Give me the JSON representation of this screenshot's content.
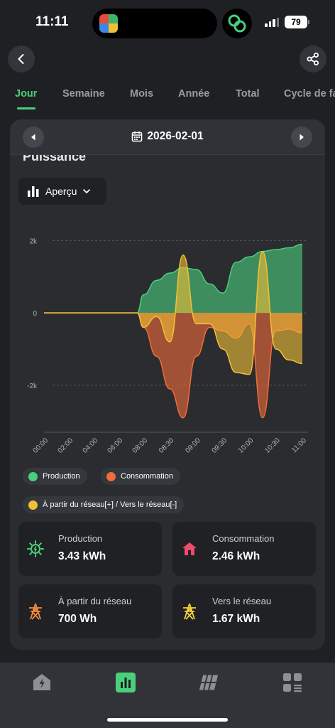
{
  "status_bar": {
    "time": "11:11",
    "battery": "79"
  },
  "tabs": [
    {
      "label": "Jour",
      "active": true
    },
    {
      "label": "Semaine",
      "active": false
    },
    {
      "label": "Mois",
      "active": false
    },
    {
      "label": "Année",
      "active": false
    },
    {
      "label": "Total",
      "active": false
    },
    {
      "label": "Cycle de facturation",
      "active": false
    }
  ],
  "date_bar": {
    "date": "2026-02-01"
  },
  "section": {
    "title": "Puissance"
  },
  "view_select": {
    "selected": "Aperçu"
  },
  "chart_data": {
    "type": "area",
    "x": [
      "00:00",
      "00:30",
      "01:00",
      "01:30",
      "02:00",
      "02:30",
      "03:00",
      "03:30",
      "04:00",
      "04:30",
      "05:00",
      "05:30",
      "06:00",
      "06:30",
      "07:00",
      "07:30",
      "08:00",
      "08:15",
      "08:30",
      "08:45",
      "09:00",
      "09:15",
      "09:30",
      "09:45",
      "10:00",
      "10:15",
      "10:30",
      "10:45",
      "11:00"
    ],
    "x_tick_labels": [
      "00:00",
      "02:00",
      "04:00",
      "06:00",
      "08:00",
      "08:30",
      "09:00",
      "09:30",
      "10:00",
      "10:30",
      "11:00"
    ],
    "y_tick_labels": [
      "2k",
      "0",
      "-2k"
    ],
    "ylim": [
      -3200,
      2400
    ],
    "grid": true,
    "series": [
      {
        "name": "Production",
        "color": "#4ccf7d",
        "values": [
          0,
          0,
          0,
          0,
          0,
          0,
          0,
          0,
          0,
          0,
          0,
          0,
          0,
          0,
          0,
          0,
          500,
          900,
          1100,
          1250,
          1200,
          800,
          550,
          1400,
          1550,
          1700,
          1750,
          1800,
          1900
        ]
      },
      {
        "name": "Consommation",
        "color": "#f26b3a",
        "values": [
          0,
          0,
          0,
          0,
          0,
          0,
          0,
          0,
          0,
          0,
          0,
          0,
          0,
          0,
          0,
          0,
          -400,
          -1200,
          -2100,
          -2900,
          -1200,
          -400,
          -500,
          -700,
          -300,
          -2900,
          -500,
          -450,
          -550
        ]
      },
      {
        "name": "À partir du réseau[+] / Vers le réseau[-]",
        "color": "#f2c037",
        "values": [
          0,
          0,
          0,
          0,
          0,
          0,
          0,
          0,
          0,
          0,
          0,
          0,
          0,
          0,
          0,
          0,
          -400,
          -100,
          -800,
          1600,
          -300,
          -300,
          -1000,
          -1650,
          -1700,
          1700,
          -1000,
          -1300,
          -1400
        ]
      }
    ],
    "legend_position": "bottom"
  },
  "legend": {
    "production": "Production",
    "consommation": "Consommation",
    "grid": "À partir du réseau[+] / Vers le réseau[-]"
  },
  "stats": [
    {
      "label": "Production",
      "value": "3.43 kWh",
      "icon": "solar-sun-icon"
    },
    {
      "label": "Consommation",
      "value": "2.46 kWh",
      "icon": "house-icon"
    },
    {
      "label": "À partir du réseau",
      "value": "700 Wh",
      "icon": "power-tower-icon"
    },
    {
      "label": "Vers le réseau",
      "value": "1.67 kWh",
      "icon": "power-tower-icon"
    }
  ],
  "colors": {
    "accent": "#4ccf7d",
    "consumption": "#f26b3a",
    "grid": "#f2c037"
  }
}
